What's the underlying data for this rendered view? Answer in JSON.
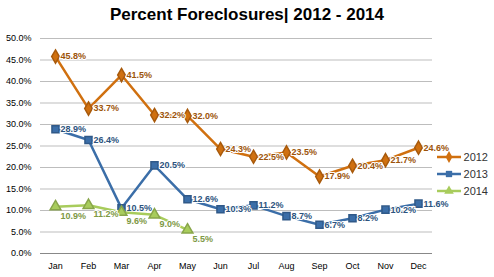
{
  "chart_data": {
    "type": "line",
    "title": "Percent Foreclosures| 2012 - 2014",
    "categories": [
      "Jan",
      "Feb",
      "Mar",
      "Apr",
      "May",
      "Jun",
      "Jul",
      "Aug",
      "Sep",
      "Oct",
      "Nov",
      "Dec"
    ],
    "series": [
      {
        "name": "2012",
        "color": "#d0700f",
        "marker": "diamond",
        "values": [
          45.8,
          33.7,
          41.5,
          32.2,
          32.0,
          24.3,
          22.5,
          23.5,
          17.9,
          20.4,
          21.7,
          24.6
        ],
        "value_labels": [
          "45.8%",
          "33.7%",
          "41.5%",
          "32.2%",
          "32.0%",
          "24.3%",
          "22.5%",
          "23.5%",
          "17.9%",
          "20.4%",
          "21.7%",
          "24.6%"
        ]
      },
      {
        "name": "2013",
        "color": "#3b6ea8",
        "marker": "square",
        "values": [
          28.9,
          26.4,
          10.5,
          20.5,
          12.6,
          10.3,
          11.2,
          8.7,
          6.7,
          8.2,
          10.2,
          11.6
        ],
        "value_labels": [
          "28.9%",
          "26.4%",
          "10.5%",
          "20.5%",
          "12.6%",
          "10.3%",
          "11.2%",
          "8.7%",
          "6.7%",
          "8.2%",
          "10.2%",
          "11.6%"
        ]
      },
      {
        "name": "2014",
        "color": "#a8cc5c",
        "marker": "triangle",
        "values": [
          10.9,
          11.2,
          9.6,
          9.0,
          5.5,
          null,
          null,
          null,
          null,
          null,
          null,
          null
        ],
        "value_labels": [
          "10.9%",
          "11.2%",
          "9.6%",
          "9.0%",
          "5.5%",
          null,
          null,
          null,
          null,
          null,
          null,
          null
        ]
      }
    ],
    "ylim": [
      0,
      50
    ],
    "yticks": [
      {
        "value": 0,
        "label": "0.0%"
      },
      {
        "value": 5,
        "label": "5.0%"
      },
      {
        "value": 10,
        "label": "10.0%"
      },
      {
        "value": 15,
        "label": "15.0%"
      },
      {
        "value": 20,
        "label": "20.0%"
      },
      {
        "value": 25,
        "label": "25.0%"
      },
      {
        "value": 30,
        "label": "30.0%"
      },
      {
        "value": 35,
        "label": "35.0%"
      },
      {
        "value": 40,
        "label": "40.0%"
      },
      {
        "value": 45,
        "label": "45.0%"
      },
      {
        "value": 50,
        "label": "50.0%"
      }
    ],
    "grid": true,
    "legend": "right",
    "data_labels": true
  }
}
